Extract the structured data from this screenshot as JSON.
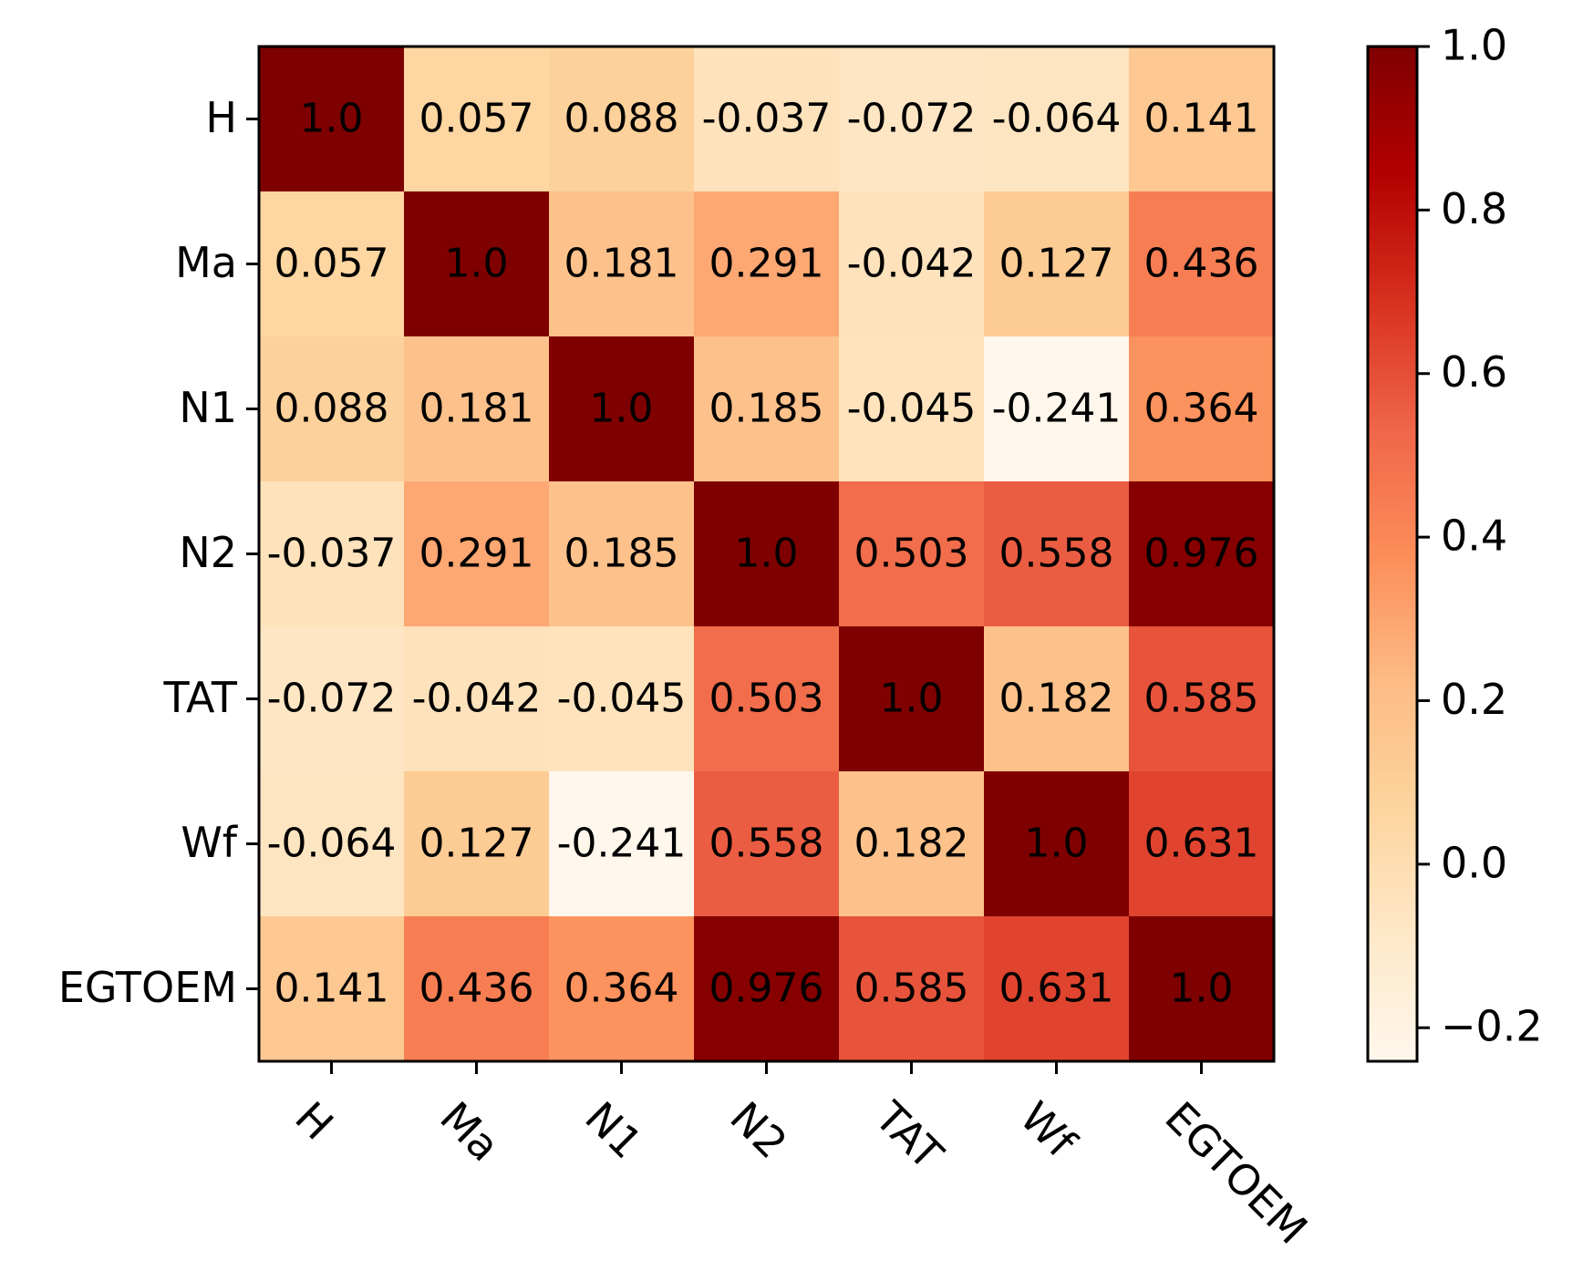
{
  "chart_data": {
    "type": "heatmap",
    "title": "",
    "xlabel": "",
    "ylabel": "",
    "rows": [
      "H",
      "Ma",
      "N1",
      "N2",
      "TAT",
      "Wf",
      "EGTOEM"
    ],
    "columns": [
      "H",
      "Ma",
      "N1",
      "N2",
      "TAT",
      "Wf",
      "EGTOEM"
    ],
    "values": [
      [
        1.0,
        0.057,
        0.088,
        -0.037,
        -0.072,
        -0.064,
        0.141
      ],
      [
        0.057,
        1.0,
        0.181,
        0.291,
        -0.042,
        0.127,
        0.436
      ],
      [
        0.088,
        0.181,
        1.0,
        0.185,
        -0.045,
        -0.241,
        0.364
      ],
      [
        -0.037,
        0.291,
        0.185,
        1.0,
        0.503,
        0.558,
        0.976
      ],
      [
        -0.072,
        -0.042,
        -0.045,
        0.503,
        1.0,
        0.182,
        0.585
      ],
      [
        -0.064,
        0.127,
        -0.241,
        0.558,
        0.182,
        1.0,
        0.631
      ],
      [
        0.141,
        0.436,
        0.364,
        0.976,
        0.585,
        0.631,
        1.0
      ]
    ],
    "cell_labels": [
      [
        "1.0",
        "0.057",
        "0.088",
        "-0.037",
        "-0.072",
        "-0.064",
        "0.141"
      ],
      [
        "0.057",
        "1.0",
        "0.181",
        "0.291",
        "-0.042",
        "0.127",
        "0.436"
      ],
      [
        "0.088",
        "0.181",
        "1.0",
        "0.185",
        "-0.045",
        "-0.241",
        "0.364"
      ],
      [
        "-0.037",
        "0.291",
        "0.185",
        "1.0",
        "0.503",
        "0.558",
        "0.976"
      ],
      [
        "-0.072",
        "-0.042",
        "-0.045",
        "0.503",
        "1.0",
        "0.182",
        "0.585"
      ],
      [
        "-0.064",
        "0.127",
        "-0.241",
        "0.558",
        "0.182",
        "1.0",
        "0.631"
      ],
      [
        "0.141",
        "0.436",
        "0.364",
        "0.976",
        "0.585",
        "0.631",
        "1.0"
      ]
    ],
    "colormap": "OrRd",
    "color_range": [
      -0.241,
      1.0
    ],
    "colorbar": {
      "ticks": [
        -0.2,
        0.0,
        0.2,
        0.4,
        0.6,
        0.8,
        1.0
      ],
      "tick_labels": [
        "−0.2",
        "0.0",
        "0.2",
        "0.4",
        "0.6",
        "0.8",
        "1.0"
      ],
      "placement": "right"
    },
    "x_tick_rotation_deg": -45
  },
  "colors": {
    "scale_stops": [
      "#fff7ec",
      "#fee8c8",
      "#fdd49e",
      "#fdbb84",
      "#fc8d59",
      "#ef6548",
      "#d7301f",
      "#b30000",
      "#7f0000"
    ],
    "text": "#000000",
    "background": "#ffffff"
  }
}
